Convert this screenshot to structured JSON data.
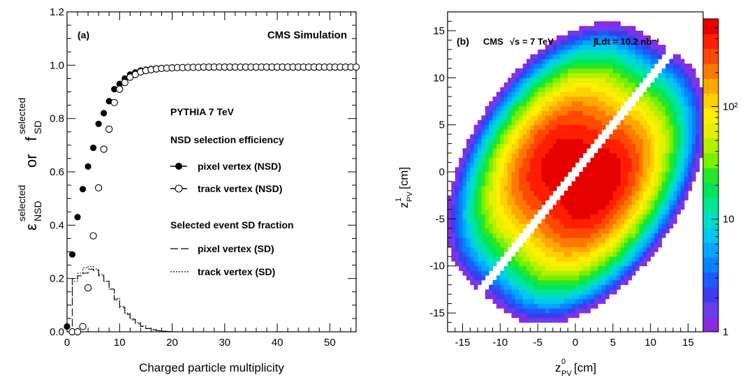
{
  "chart_data": [
    {
      "type": "scatter",
      "panel": "(a)",
      "title": "CMS Simulation",
      "xlabel": "Charged particle multiplicity",
      "ylabel": {
        "base": "ε",
        "base_sub": "NSD",
        "base_sup": "selected",
        "or": "or",
        "f": "f",
        "f_sub": "SD",
        "f_sup": "selected"
      },
      "xlim": [
        0,
        55
      ],
      "ylim": [
        0,
        1.2
      ],
      "x_ticks": [
        0,
        10,
        20,
        30,
        40,
        50
      ],
      "y_ticks": [
        "0.0",
        "0.2",
        "0.4",
        "0.6",
        "0.8",
        "1.0",
        "1.2"
      ],
      "legend": {
        "generator": "PYTHIA 7 TeV",
        "group1": "NSD selection efficiency",
        "group2": "Selected event SD fraction",
        "entries": [
          "pixel vertex (NSD)",
          "track vertex (NSD)",
          "pixel vertex (SD)",
          "track vertex (SD)"
        ]
      },
      "series": [
        {
          "name": "pixel vertex (NSD)",
          "marker": "filled-circle",
          "x": [
            0,
            1,
            2,
            3,
            4,
            5,
            6,
            7,
            8,
            9,
            10,
            11,
            12,
            13,
            14,
            15,
            16,
            17,
            18,
            19,
            20,
            21,
            22,
            23,
            24,
            25,
            26,
            27,
            28,
            29,
            30,
            31,
            32,
            33,
            34,
            35,
            36,
            37,
            38,
            39,
            40,
            41,
            42,
            43,
            44,
            45,
            46,
            47,
            48,
            49,
            50,
            51,
            52,
            53,
            54,
            55
          ],
          "y": [
            0.02,
            0.29,
            0.43,
            0.535,
            0.62,
            0.69,
            0.78,
            0.82,
            0.865,
            0.91,
            0.93,
            0.95,
            0.965,
            0.973,
            0.98,
            0.983,
            0.986,
            0.988,
            0.989,
            0.99,
            0.991,
            0.991,
            0.992,
            0.992,
            0.992,
            0.993,
            0.993,
            0.993,
            0.993,
            0.993,
            0.993,
            0.993,
            0.993,
            0.993,
            0.993,
            0.993,
            0.993,
            0.993,
            0.993,
            0.993,
            0.993,
            0.993,
            0.993,
            0.993,
            0.993,
            0.993,
            0.993,
            0.993,
            0.993,
            0.993,
            0.993,
            0.993,
            0.993,
            0.993,
            0.993,
            0.993
          ]
        },
        {
          "name": "track vertex (NSD)",
          "marker": "open-circle",
          "x": [
            1,
            2,
            3,
            4,
            5,
            6,
            7,
            8,
            9,
            10,
            11,
            12,
            13,
            14,
            15,
            16,
            17,
            18,
            19,
            20,
            21,
            22,
            23,
            24,
            25,
            26,
            27,
            28,
            29,
            30,
            31,
            32,
            33,
            34,
            35,
            36,
            37,
            38,
            39,
            40,
            41,
            42,
            43,
            44,
            45,
            46,
            47,
            48,
            49,
            50,
            51,
            52,
            53,
            54,
            55
          ],
          "y": [
            0.0,
            0.0,
            0.02,
            0.165,
            0.36,
            0.54,
            0.685,
            0.76,
            0.86,
            0.91,
            0.935,
            0.955,
            0.965,
            0.975,
            0.98,
            0.983,
            0.986,
            0.988,
            0.989,
            0.99,
            0.991,
            0.991,
            0.992,
            0.992,
            0.992,
            0.993,
            0.993,
            0.993,
            0.993,
            0.993,
            0.993,
            0.993,
            0.993,
            0.993,
            0.993,
            0.993,
            0.993,
            0.993,
            0.993,
            0.993,
            0.993,
            0.993,
            0.993,
            0.993,
            0.993,
            0.993,
            0.993,
            0.993,
            0.993,
            0.993,
            0.993,
            0.993,
            0.993,
            0.993,
            0.993
          ]
        },
        {
          "name": "pixel vertex (SD)",
          "style": "long-dash-step",
          "x": [
            0,
            1,
            2,
            3,
            4,
            5,
            6,
            7,
            8,
            9,
            10,
            11,
            12,
            13,
            14,
            15,
            16,
            17,
            18,
            19,
            20
          ],
          "y": [
            0.0,
            0.2,
            0.21,
            0.22,
            0.235,
            0.23,
            0.21,
            0.19,
            0.16,
            0.12,
            0.09,
            0.065,
            0.045,
            0.03,
            0.02,
            0.012,
            0.007,
            0.004,
            0.002,
            0.001,
            0.0
          ]
        },
        {
          "name": "track vertex (SD)",
          "style": "dotted-step",
          "x": [
            0,
            1,
            2,
            3,
            4,
            5,
            6,
            7,
            8,
            9,
            10,
            11,
            12,
            13,
            14,
            15,
            16,
            17,
            18,
            19,
            20
          ],
          "y": [
            0.1,
            0.19,
            0.22,
            0.24,
            0.245,
            0.235,
            0.215,
            0.19,
            0.16,
            0.125,
            0.095,
            0.07,
            0.05,
            0.035,
            0.022,
            0.013,
            0.008,
            0.004,
            0.002,
            0.001,
            0.0
          ]
        }
      ]
    },
    {
      "type": "heatmap",
      "panel": "(b)",
      "title": "CMS",
      "energy": "√s = 7 TeV",
      "luminosity": "∫Ldt = 10.2 nb⁻¹",
      "xlabel": {
        "base": "z",
        "sub": "PV",
        "sup": "0",
        "unit": " [cm]"
      },
      "ylabel": {
        "base": "z",
        "sub": "PV",
        "sup": "1",
        "unit": " [cm]"
      },
      "xlim": [
        -17,
        17
      ],
      "ylim": [
        -17,
        17
      ],
      "x_ticks": [
        "-15",
        "-10",
        "-5",
        "0",
        "5",
        "10",
        "15"
      ],
      "y_ticks": [
        "-15",
        "-10",
        "-5",
        "0",
        "5",
        "10",
        "15"
      ],
      "z_scale": "log",
      "zlim": [
        1,
        600
      ],
      "colorbar_ticks": [
        "1",
        "10",
        "10²"
      ],
      "colors": [
        "#8a2be2",
        "#6a3ee8",
        "#3c3cf0",
        "#1e5aff",
        "#0a82ff",
        "#00a8ff",
        "#00c8f0",
        "#00dcc8",
        "#00e696",
        "#00e65a",
        "#28e628",
        "#78f000",
        "#b4f000",
        "#e6f000",
        "#fff000",
        "#ffd200",
        "#ffa800",
        "#ff7800",
        "#ff4800",
        "#ff1e00",
        "#e60000"
      ],
      "blobs": [
        {
          "center": [
            -2.8,
            1.6
          ],
          "sigma_major": 5.0,
          "sigma_minor": 2.9,
          "angle_deg": 45,
          "peak": 450
        },
        {
          "center": [
            2.8,
            -1.6
          ],
          "sigma_major": 5.0,
          "sigma_minor": 2.9,
          "angle_deg": 45,
          "peak": 600
        }
      ],
      "gap_halfwidth": 0.45
    }
  ]
}
